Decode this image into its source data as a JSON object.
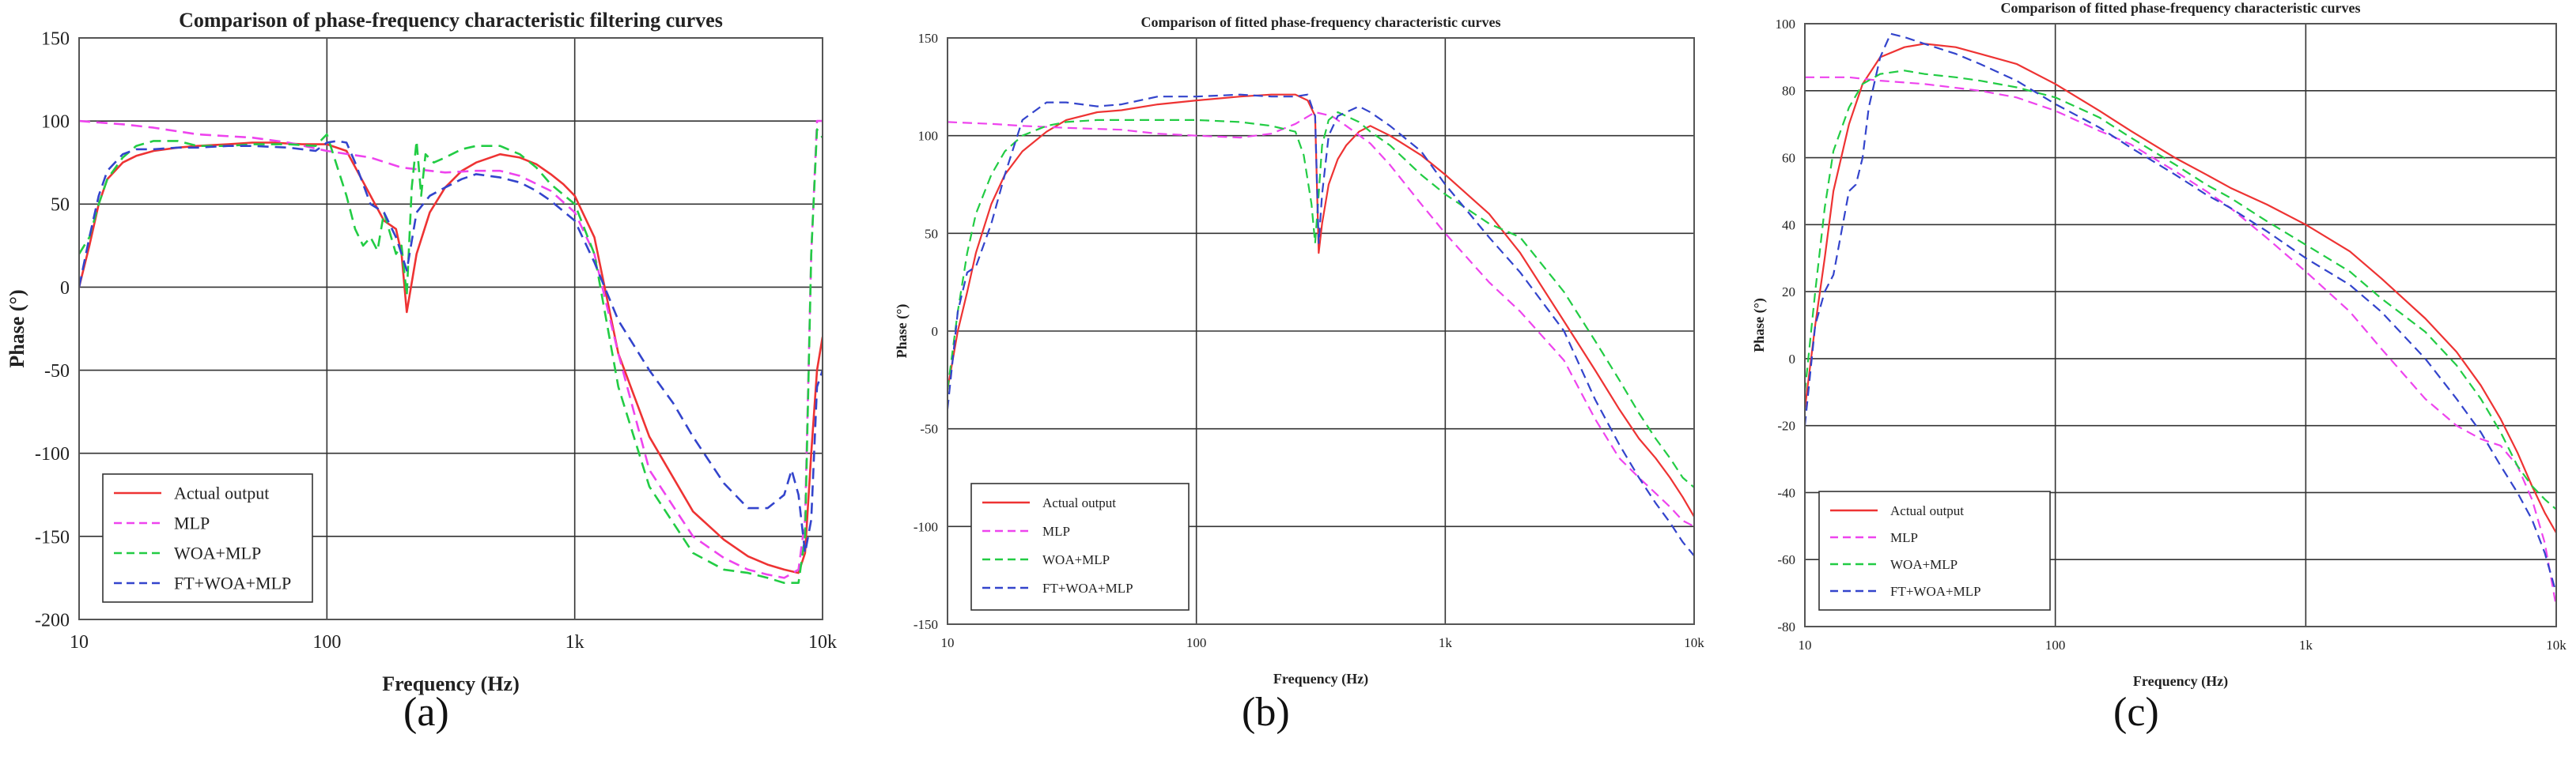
{
  "colors": {
    "actual": "#ee3333",
    "mlp": "#ee44ee",
    "woa": "#22cc44",
    "ft": "#3344cc",
    "grid": "#333333",
    "frame": "#555555"
  },
  "chart_data": [
    {
      "type": "line",
      "panel_label": "(a)",
      "title": "Comparison of phase-frequency characteristic filtering curves",
      "xlabel": "Frequency (Hz)",
      "ylabel": "Phase (°)",
      "xscale": "log",
      "xlim": [
        10,
        10000
      ],
      "ylim": [
        -200,
        150
      ],
      "x_ticks": [
        10,
        100,
        1000,
        10000
      ],
      "x_tick_labels": [
        "10",
        "100",
        "1k",
        "10k"
      ],
      "y_ticks": [
        -200,
        -150,
        -100,
        -50,
        0,
        50,
        100,
        150
      ],
      "y_tick_labels": [
        "-200",
        "-150",
        "-100",
        "-50",
        "0",
        "50",
        "100",
        "150"
      ],
      "grid": true,
      "legend_position": "bottom-left",
      "series": [
        {
          "name": "Actual output",
          "key": "actual",
          "dashed": false,
          "x": [
            10,
            11,
            12,
            13,
            15,
            17,
            20,
            25,
            30,
            40,
            50,
            60,
            80,
            100,
            120,
            150,
            170,
            190,
            200,
            210,
            230,
            260,
            300,
            350,
            400,
            500,
            600,
            700,
            800,
            900,
            1000,
            1200,
            1500,
            2000,
            3000,
            4000,
            5000,
            6000,
            7000,
            8000,
            8500,
            9000,
            9500,
            10000
          ],
          "y": [
            0,
            25,
            50,
            65,
            75,
            79,
            82,
            84,
            85,
            86,
            87,
            87,
            86,
            86,
            82,
            55,
            40,
            35,
            20,
            -15,
            20,
            45,
            60,
            70,
            75,
            80,
            78,
            74,
            68,
            62,
            55,
            30,
            -40,
            -90,
            -135,
            -152,
            -162,
            -167,
            -170,
            -172,
            -160,
            -100,
            -50,
            -30
          ]
        },
        {
          "name": "MLP",
          "key": "mlp",
          "dashed": true,
          "x": [
            10,
            15,
            20,
            30,
            50,
            70,
            100,
            150,
            200,
            300,
            400,
            500,
            600,
            800,
            1000,
            1200,
            1500,
            2000,
            3000,
            4000,
            5000,
            6000,
            7000,
            8000,
            8500,
            9000,
            9500,
            10000
          ],
          "y": [
            100,
            98,
            96,
            92,
            90,
            87,
            82,
            78,
            72,
            69,
            70,
            70,
            67,
            58,
            45,
            20,
            -40,
            -110,
            -150,
            -163,
            -170,
            -173,
            -175,
            -170,
            -140,
            20,
            100,
            100
          ]
        },
        {
          "name": "WOA+MLP",
          "key": "woa",
          "dashed": true,
          "x": [
            10,
            11,
            12,
            13,
            15,
            17,
            20,
            25,
            30,
            40,
            50,
            70,
            90,
            100,
            120,
            130,
            140,
            150,
            160,
            170,
            190,
            200,
            210,
            220,
            230,
            240,
            250,
            270,
            300,
            350,
            400,
            500,
            600,
            700,
            800,
            1000,
            1200,
            1500,
            2000,
            3000,
            4000,
            5000,
            6000,
            7000,
            8000,
            8500,
            9000,
            9500,
            10000
          ],
          "y": [
            20,
            30,
            50,
            65,
            78,
            85,
            88,
            88,
            85,
            85,
            86,
            86,
            85,
            92,
            55,
            35,
            25,
            30,
            22,
            45,
            20,
            25,
            -5,
            60,
            88,
            55,
            80,
            75,
            78,
            83,
            85,
            85,
            80,
            72,
            62,
            50,
            20,
            -60,
            -120,
            -160,
            -170,
            -172,
            -175,
            -178,
            -178,
            -150,
            20,
            95,
            90
          ]
        },
        {
          "name": "FT+WOA+MLP",
          "key": "ft",
          "dashed": true,
          "x": [
            10,
            11,
            12,
            13,
            15,
            17,
            20,
            25,
            30,
            40,
            50,
            70,
            90,
            100,
            110,
            120,
            130,
            150,
            170,
            190,
            200,
            210,
            230,
            260,
            300,
            350,
            400,
            500,
            600,
            700,
            800,
            1000,
            1200,
            1500,
            2000,
            2500,
            3000,
            4000,
            5000,
            6000,
            7000,
            7500,
            8000,
            8500,
            9000,
            9500,
            10000
          ],
          "y": [
            0,
            30,
            55,
            70,
            80,
            83,
            83,
            84,
            84,
            85,
            85,
            84,
            82,
            87,
            88,
            87,
            75,
            50,
            45,
            30,
            20,
            10,
            45,
            55,
            60,
            65,
            68,
            66,
            63,
            58,
            52,
            40,
            15,
            -20,
            -50,
            -70,
            -90,
            -118,
            -133,
            -133,
            -125,
            -110,
            -125,
            -160,
            -140,
            -60,
            -50
          ]
        }
      ]
    },
    {
      "type": "line",
      "panel_label": "(b)",
      "title": "Comparison of fitted phase-frequency characteristic curves",
      "xlabel": "Frequency (Hz)",
      "ylabel": "Phase (°)",
      "xscale": "log",
      "xlim": [
        10,
        10000
      ],
      "ylim": [
        -150,
        150
      ],
      "x_ticks": [
        10,
        100,
        1000,
        10000
      ],
      "x_tick_labels": [
        "10",
        "100",
        "1k",
        "10k"
      ],
      "y_ticks": [
        -150,
        -100,
        -50,
        0,
        50,
        100,
        150
      ],
      "y_tick_labels": [
        "-150",
        "-100",
        "-50",
        "0",
        "50",
        "100",
        "150"
      ],
      "grid": true,
      "legend_position": "bottom-left",
      "series": [
        {
          "name": "Actual output",
          "key": "actual",
          "dashed": false,
          "x": [
            10,
            11,
            12,
            13,
            15,
            17,
            20,
            25,
            30,
            40,
            50,
            70,
            100,
            150,
            200,
            250,
            280,
            300,
            310,
            320,
            340,
            370,
            400,
            450,
            500,
            600,
            800,
            1000,
            1500,
            2000,
            3000,
            4000,
            5000,
            6000,
            7000,
            8000,
            9000,
            10000
          ],
          "y": [
            -30,
            0,
            20,
            40,
            65,
            80,
            92,
            102,
            108,
            112,
            113,
            116,
            118,
            120,
            121,
            121,
            118,
            110,
            40,
            55,
            75,
            88,
            95,
            102,
            105,
            100,
            90,
            80,
            60,
            40,
            5,
            -20,
            -40,
            -55,
            -65,
            -75,
            -85,
            -95
          ]
        },
        {
          "name": "MLP",
          "key": "mlp",
          "dashed": true,
          "x": [
            10,
            15,
            20,
            30,
            50,
            70,
            100,
            150,
            200,
            250,
            300,
            350,
            400,
            500,
            600,
            800,
            1000,
            1500,
            2000,
            3000,
            4000,
            5000,
            6000,
            7000,
            8000,
            9000,
            10000
          ],
          "y": [
            107,
            106,
            105,
            104,
            103,
            101,
            100,
            99,
            101,
            106,
            112,
            110,
            105,
            96,
            85,
            65,
            50,
            25,
            10,
            -15,
            -45,
            -65,
            -75,
            -83,
            -90,
            -97,
            -100
          ]
        },
        {
          "name": "WOA+MLP",
          "key": "woa",
          "dashed": true,
          "x": [
            10,
            11,
            12,
            13,
            15,
            17,
            20,
            25,
            30,
            40,
            50,
            70,
            100,
            150,
            200,
            250,
            270,
            290,
            300,
            310,
            320,
            340,
            370,
            400,
            450,
            500,
            600,
            800,
            1000,
            1500,
            2000,
            3000,
            4000,
            5000,
            6000,
            7000,
            8000,
            9000,
            10000
          ],
          "y": [
            -30,
            10,
            40,
            60,
            80,
            92,
            100,
            105,
            107,
            108,
            108,
            108,
            108,
            107,
            105,
            102,
            90,
            65,
            45,
            70,
            95,
            108,
            112,
            110,
            107,
            102,
            95,
            80,
            70,
            55,
            48,
            20,
            -5,
            -25,
            -42,
            -55,
            -65,
            -75,
            -80
          ]
        },
        {
          "name": "FT+WOA+MLP",
          "key": "ft",
          "dashed": true,
          "x": [
            10,
            11,
            12,
            13,
            15,
            17,
            20,
            25,
            30,
            40,
            50,
            70,
            100,
            150,
            200,
            250,
            280,
            300,
            310,
            320,
            340,
            370,
            400,
            450,
            500,
            600,
            800,
            1000,
            1500,
            2000,
            3000,
            4000,
            5000,
            6000,
            7000,
            8000,
            9000,
            10000
          ],
          "y": [
            -40,
            10,
            30,
            33,
            55,
            80,
            108,
            117,
            117,
            115,
            116,
            120,
            120,
            121,
            120,
            120,
            121,
            110,
            45,
            70,
            100,
            110,
            112,
            115,
            112,
            105,
            92,
            75,
            48,
            30,
            0,
            -35,
            -58,
            -75,
            -88,
            -98,
            -108,
            -115
          ]
        }
      ]
    },
    {
      "type": "line",
      "panel_label": "(c)",
      "title": "Comparison of fitted phase-frequency characteristic curves",
      "xlabel": "Frequency (Hz)",
      "ylabel": "Phase (°)",
      "xscale": "log",
      "xlim": [
        10,
        10000
      ],
      "ylim": [
        -80,
        100
      ],
      "x_ticks": [
        10,
        100,
        1000,
        10000
      ],
      "x_tick_labels": [
        "10",
        "100",
        "1k",
        "10k"
      ],
      "y_ticks": [
        -80,
        -60,
        -40,
        -20,
        0,
        20,
        40,
        60,
        80,
        100
      ],
      "y_tick_labels": [
        "-80",
        "-60",
        "-40",
        "-20",
        "0",
        "20",
        "40",
        "60",
        "80",
        "100"
      ],
      "grid": true,
      "legend_position": "bottom-left",
      "series": [
        {
          "name": "Actual output",
          "key": "actual",
          "dashed": false,
          "x": [
            10,
            11,
            12,
            13,
            15,
            17,
            20,
            25,
            30,
            40,
            50,
            70,
            100,
            150,
            200,
            300,
            400,
            500,
            700,
            1000,
            1500,
            2000,
            3000,
            4000,
            5000,
            6000,
            7000,
            8000,
            9000,
            10000
          ],
          "y": [
            -15,
            10,
            30,
            50,
            70,
            82,
            90,
            93,
            94,
            93,
            91,
            88,
            82,
            74,
            68,
            60,
            55,
            51,
            46,
            40,
            32,
            24,
            12,
            2,
            -8,
            -18,
            -28,
            -38,
            -46,
            -52
          ]
        },
        {
          "name": "MLP",
          "key": "mlp",
          "dashed": true,
          "x": [
            10,
            15,
            20,
            30,
            50,
            70,
            100,
            150,
            200,
            300,
            400,
            500,
            700,
            1000,
            1500,
            2000,
            3000,
            4000,
            5000,
            6000,
            7000,
            8000,
            9000,
            10000
          ],
          "y": [
            84,
            84,
            83,
            82,
            80,
            78,
            74,
            68,
            64,
            56,
            50,
            45,
            36,
            26,
            14,
            3,
            -12,
            -20,
            -24,
            -26,
            -32,
            -42,
            -55,
            -74
          ]
        },
        {
          "name": "WOA+MLP",
          "key": "woa",
          "dashed": true,
          "x": [
            10,
            11,
            12,
            13,
            15,
            17,
            20,
            25,
            30,
            40,
            50,
            70,
            100,
            150,
            200,
            300,
            400,
            500,
            700,
            1000,
            1500,
            2000,
            3000,
            4000,
            5000,
            6000,
            7000,
            8000,
            9000,
            10000
          ],
          "y": [
            -10,
            20,
            45,
            62,
            75,
            82,
            85,
            86,
            85,
            84,
            83,
            81,
            78,
            72,
            66,
            58,
            52,
            48,
            41,
            34,
            26,
            18,
            8,
            -2,
            -12,
            -22,
            -32,
            -38,
            -42,
            -45
          ]
        },
        {
          "name": "FT+WOA+MLP",
          "key": "ft",
          "dashed": true,
          "x": [
            10,
            11,
            12,
            13,
            15,
            16,
            17,
            18,
            20,
            22,
            25,
            30,
            40,
            50,
            70,
            100,
            150,
            200,
            300,
            400,
            500,
            700,
            1000,
            1500,
            2000,
            3000,
            4000,
            5000,
            6000,
            7000,
            8000,
            9000,
            10000
          ],
          "y": [
            -20,
            10,
            20,
            25,
            50,
            52,
            60,
            75,
            90,
            97,
            96,
            94,
            91,
            88,
            83,
            76,
            69,
            63,
            55,
            49,
            45,
            38,
            30,
            22,
            14,
            0,
            -12,
            -22,
            -32,
            -40,
            -48,
            -58,
            -70
          ]
        }
      ]
    }
  ]
}
